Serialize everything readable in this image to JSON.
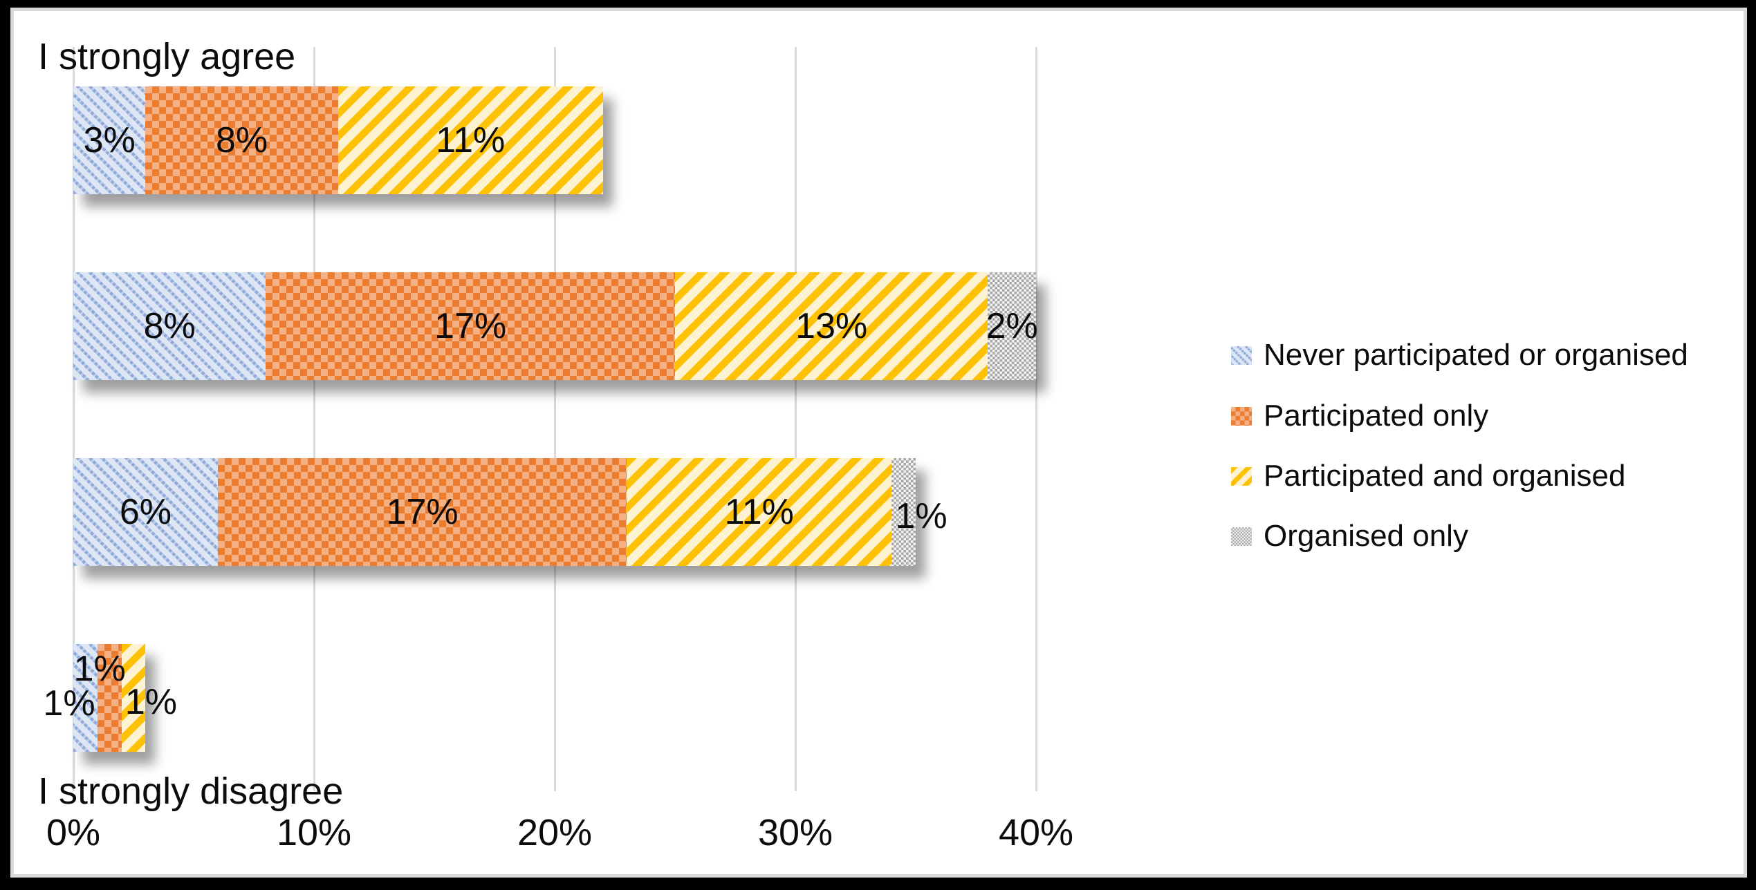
{
  "chart_data": {
    "type": "bar",
    "orientation": "horizontal",
    "stacked": true,
    "title": "",
    "categories": [
      "I strongly agree",
      "",
      "",
      "I strongly disagree"
    ],
    "series": [
      {
        "name": "Never participated or organised",
        "pattern": "diagonal-down-dashed",
        "color_fg": "#8fa9d9",
        "color_bg": "#dde6f4",
        "values": [
          3,
          8,
          6,
          1
        ],
        "labels": [
          "3%",
          "8%",
          "6%",
          "1%"
        ],
        "label_placements": [
          null,
          null,
          null,
          "outside-left"
        ]
      },
      {
        "name": "Participated only",
        "pattern": "checker",
        "color_fg": "#ec7c2f",
        "color_bg": "#f5b183",
        "values": [
          8,
          17,
          17,
          1
        ],
        "labels": [
          "8%",
          "17%",
          "17%",
          "1%"
        ],
        "label_placements": [
          null,
          null,
          null,
          "above"
        ]
      },
      {
        "name": "Participated and organised",
        "pattern": "diagonal-up-stripe",
        "color_fg": "#ffc103",
        "color_bg": "#fdf3d2",
        "values": [
          11,
          13,
          11,
          1
        ],
        "labels": [
          "11%",
          "13%",
          "11%",
          "1%"
        ],
        "label_placements": [
          null,
          null,
          null,
          "outside-right"
        ]
      },
      {
        "name": "Organised only",
        "pattern": "checker-fine",
        "color_fg": "#a8a8a8",
        "color_bg": "#f3f3f3",
        "values": [
          0,
          2,
          1,
          0
        ],
        "labels": [
          "",
          "2%",
          "1%",
          ""
        ],
        "label_placements": [
          null,
          null,
          "outside-right",
          null
        ]
      }
    ],
    "x_axis": {
      "ticks": [
        0,
        10,
        20,
        30,
        40
      ],
      "tick_labels": [
        "0%",
        "10%",
        "20%",
        "30%",
        "40%"
      ],
      "min": 0,
      "max": 40,
      "grid": true
    },
    "legend": {
      "position": "right"
    },
    "colors": {
      "gridline": "#d9d9d9",
      "chart_border": "#d9d9d9",
      "frame": "#000000",
      "background": "#ffffff",
      "text": "#0b0b0b"
    }
  }
}
